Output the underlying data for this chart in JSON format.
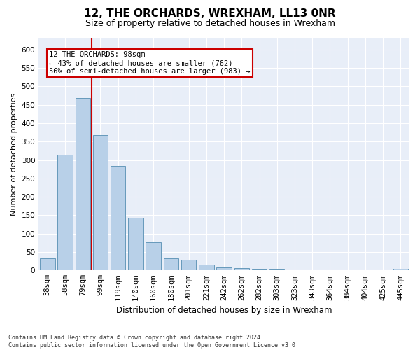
{
  "title": "12, THE ORCHARDS, WREXHAM, LL13 0NR",
  "subtitle": "Size of property relative to detached houses in Wrexham",
  "xlabel": "Distribution of detached houses by size in Wrexham",
  "ylabel": "Number of detached properties",
  "categories": [
    "38sqm",
    "58sqm",
    "79sqm",
    "99sqm",
    "119sqm",
    "140sqm",
    "160sqm",
    "180sqm",
    "201sqm",
    "221sqm",
    "242sqm",
    "262sqm",
    "282sqm",
    "303sqm",
    "323sqm",
    "343sqm",
    "364sqm",
    "384sqm",
    "404sqm",
    "425sqm",
    "445sqm"
  ],
  "values": [
    32,
    315,
    468,
    368,
    283,
    143,
    76,
    32,
    30,
    15,
    8,
    7,
    3,
    2,
    1,
    1,
    1,
    0,
    0,
    0,
    4
  ],
  "bar_color": "#b8d0e8",
  "bar_edge_color": "#6699bb",
  "annotation_text": "12 THE ORCHARDS: 98sqm\n← 43% of detached houses are smaller (762)\n56% of semi-detached houses are larger (983) →",
  "annotation_box_facecolor": "#ffffff",
  "annotation_box_edgecolor": "#cc0000",
  "red_line_color": "#cc0000",
  "bg_color": "#ffffff",
  "plot_bg_color": "#e8eef8",
  "grid_color": "#ffffff",
  "footnote": "Contains HM Land Registry data © Crown copyright and database right 2024.\nContains public sector information licensed under the Open Government Licence v3.0.",
  "ylim": [
    0,
    630
  ],
  "yticks": [
    0,
    50,
    100,
    150,
    200,
    250,
    300,
    350,
    400,
    450,
    500,
    550,
    600
  ],
  "title_fontsize": 11,
  "subtitle_fontsize": 9,
  "ylabel_fontsize": 8,
  "xlabel_fontsize": 8.5,
  "tick_fontsize": 7.5,
  "annotation_fontsize": 7.5,
  "footnote_fontsize": 6.0,
  "red_line_x": 2.5
}
